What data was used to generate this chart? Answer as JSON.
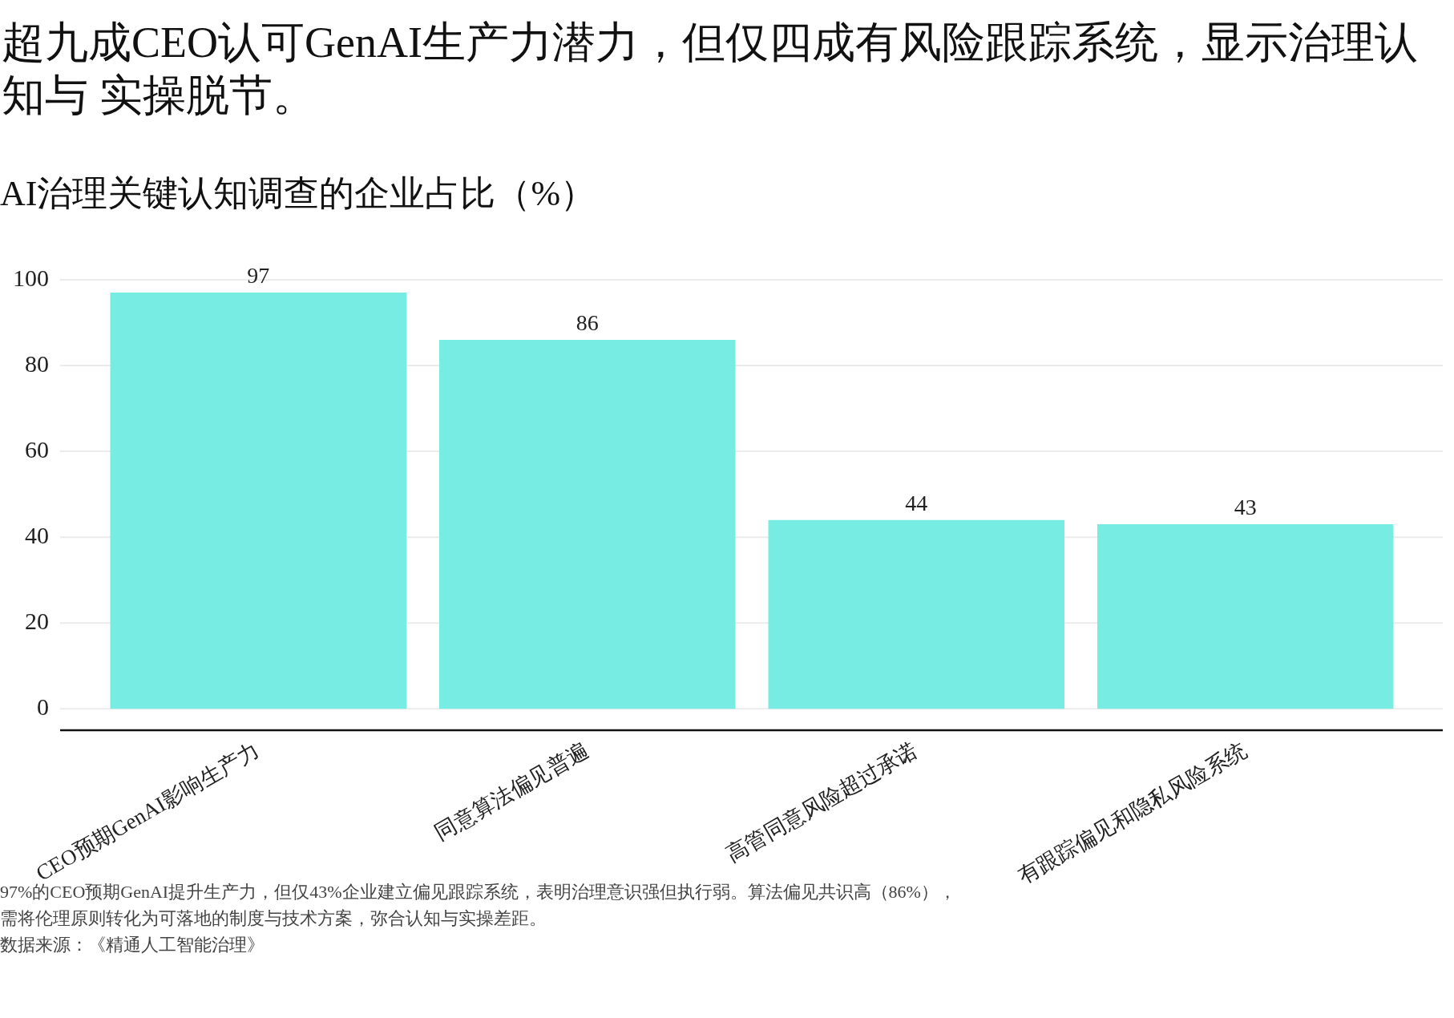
{
  "chart_data": {
    "type": "bar",
    "title": "超九成CEO认可GenAI生产力潜力，但仅四成有风险跟踪系统，显示治理认知与 实操脱节。",
    "subtitle": "AI治理关键认知调查的企业占比（%）",
    "categories": [
      "CEO预期GenAI影响生产力",
      "同意算法偏见普遍",
      "高管同意风险超过承诺",
      "有跟踪偏见和隐私风险系统"
    ],
    "values": [
      97,
      86,
      44,
      43
    ],
    "color": "#76ece2",
    "ylim": [
      -5,
      100
    ],
    "yticks": [
      0,
      20,
      40,
      60,
      80,
      100
    ],
    "grid": "y",
    "data_labels": true,
    "annotations": [
      "97%的CEO预期GenAI提升生产力，但仅43%企业建立偏见跟踪系统，表明治理意识强但执行弱。算法偏见共识高（86%），需将伦理原则转化为可落地的制度与技术方案，弥合认知与实操差距。",
      "数据来源：《精通人工智能治理》"
    ]
  }
}
